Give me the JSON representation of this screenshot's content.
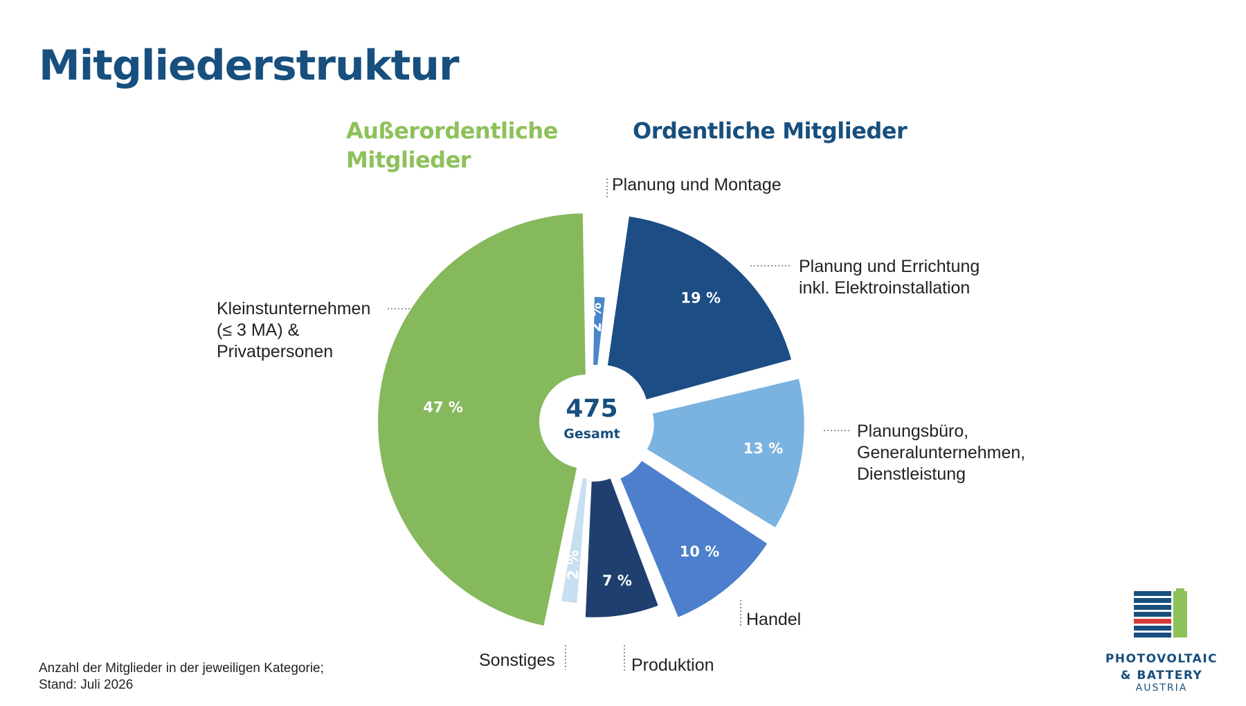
{
  "page": {
    "title": "Mitgliederstruktur"
  },
  "groups": {
    "extraordinary": "Außerordentliche Mitglieder",
    "ordinary": "Ordentliche Mitglieder"
  },
  "chart_data": {
    "type": "pie",
    "variant": "exploded donut",
    "center": {
      "value": "475",
      "label": "Gesamt"
    },
    "series": [
      {
        "category": "Planung und Montage",
        "value": 2,
        "value_label": "2 %",
        "group": "Ordentliche Mitglieder",
        "color": "#4a86c8"
      },
      {
        "category": "Planung und Errichtung\ninkl. Elektroinstallation",
        "value": 19,
        "value_label": "19 %",
        "group": "Ordentliche Mitglieder",
        "color": "#1d4d85"
      },
      {
        "category": "Planungsbüro,\nGeneralunternehmen,\nDienstleistung",
        "value": 13,
        "value_label": "13 %",
        "group": "Ordentliche Mitglieder",
        "color": "#7ab2e0"
      },
      {
        "category": "Handel",
        "value": 10,
        "value_label": "10 %",
        "group": "Ordentliche Mitglieder",
        "color": "#4d7fcc"
      },
      {
        "category": "Produktion",
        "value": 7,
        "value_label": "7 %",
        "group": "Ordentliche Mitglieder",
        "color": "#1f3f6e"
      },
      {
        "category": "Sonstiges",
        "value": 2,
        "value_label": "2 %",
        "group": "Außerordentliche Mitglieder",
        "color": "#c7dff0"
      },
      {
        "category": "Kleinstunternehmen\n(≤ 3 MA) &\nPrivatpersonen",
        "value": 47,
        "value_label": "47 %",
        "group": "Außerordentliche Mitglieder",
        "color": "#86b85c"
      }
    ]
  },
  "footnote": "Anzahl der Mitglieder in der jeweiligen Kategorie;\nStand: Juli 2026",
  "logo": {
    "line1": "PHOTOVOLTAIC",
    "line2": "& BATTERY",
    "line3": "AUSTRIA",
    "colors": {
      "blue": "#174f7e",
      "green": "#8dc15a",
      "red": "#d63a3a"
    }
  }
}
